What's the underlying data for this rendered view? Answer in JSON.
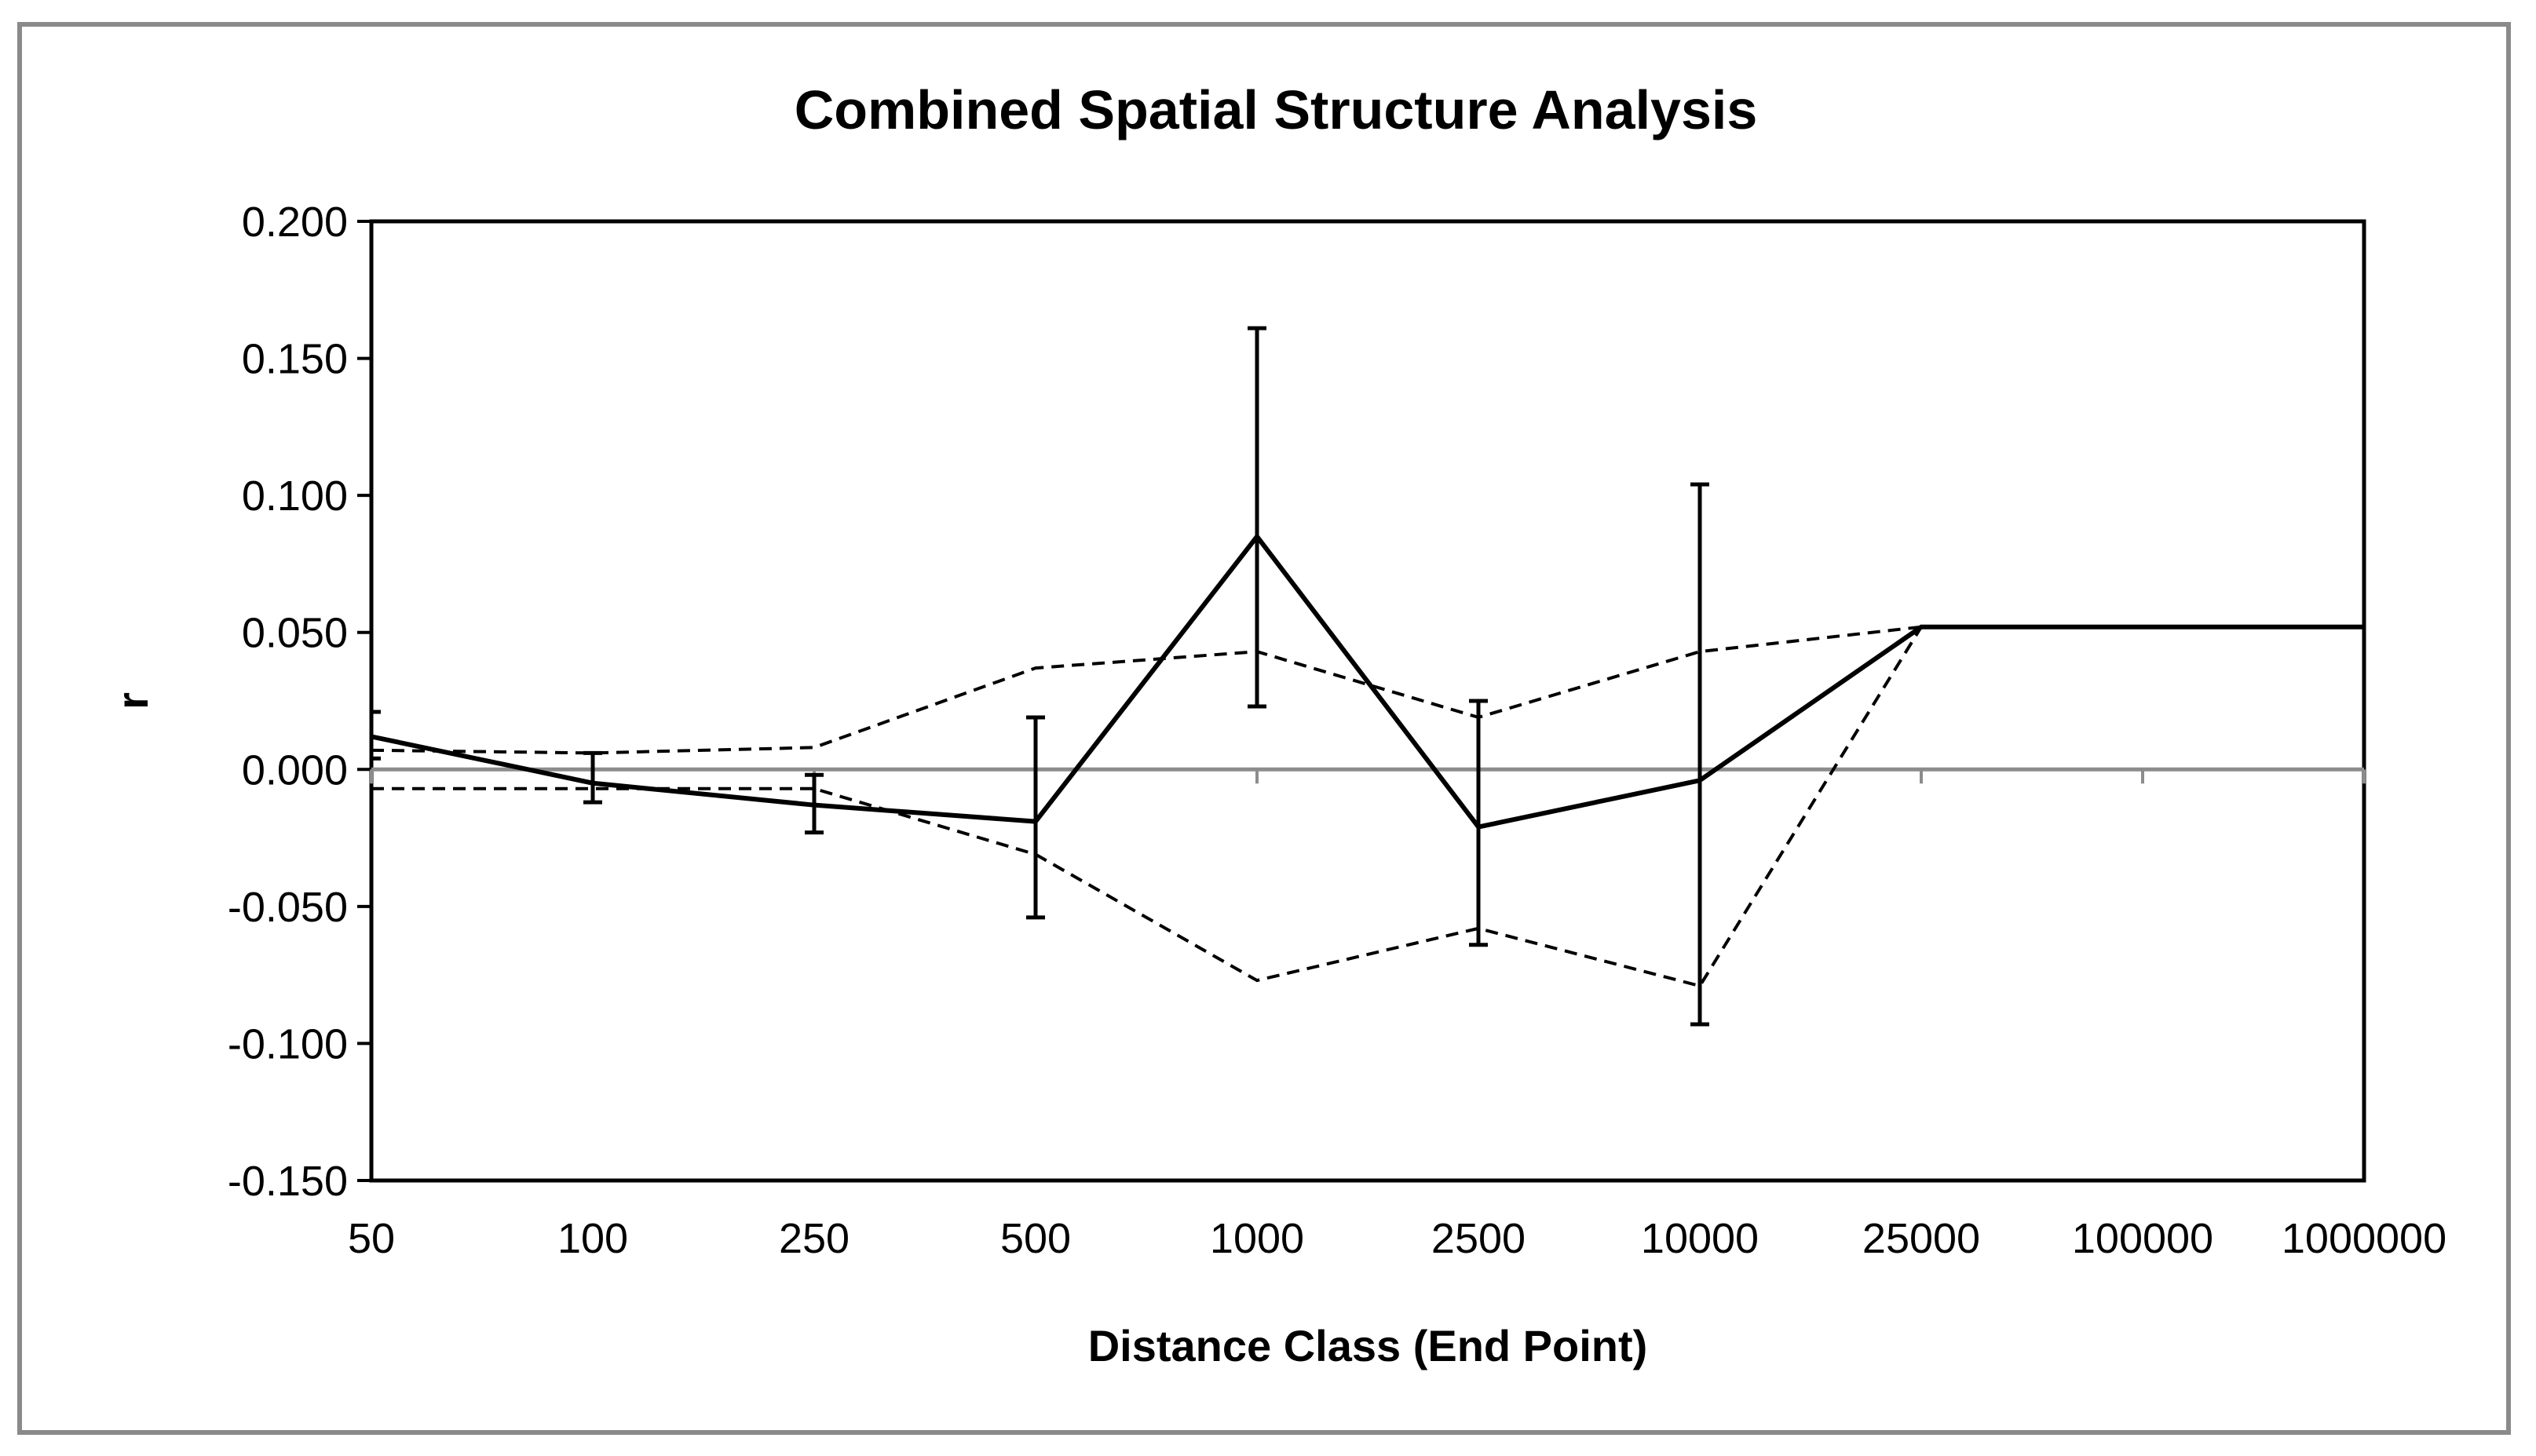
{
  "chart_data": {
    "type": "line",
    "title": "Combined Spatial Structure Analysis",
    "xlabel": "Distance Class (End Point)",
    "ylabel": "r",
    "categories": [
      "50",
      "100",
      "250",
      "500",
      "1000",
      "2500",
      "10000",
      "25000",
      "100000",
      "1000000"
    ],
    "ylim": [
      -0.15,
      0.2
    ],
    "yticks": [
      "0.200",
      "0.150",
      "0.100",
      "0.050",
      "0.000",
      "-0.050",
      "-0.100",
      "-0.150"
    ],
    "ytick_values": [
      0.2,
      0.15,
      0.1,
      0.05,
      0.0,
      -0.05,
      -0.1,
      -0.15
    ],
    "grid": false,
    "zero_line": true,
    "series": [
      {
        "style": "solid",
        "values": [
          0.012,
          -0.005,
          -0.013,
          -0.019,
          0.085,
          -0.021,
          -0.004,
          0.052,
          0.052,
          0.052
        ],
        "error_bars": [
          [
            0.004,
            0.021
          ],
          [
            -0.012,
            0.006
          ],
          [
            -0.023,
            -0.002
          ],
          [
            -0.054,
            0.019
          ],
          [
            0.023,
            0.161
          ],
          [
            -0.064,
            0.025
          ],
          [
            -0.093,
            0.104
          ],
          null,
          null,
          null
        ]
      },
      {
        "style": "dashed",
        "values": [
          0.007,
          0.006,
          0.008,
          0.037,
          0.043,
          0.019,
          0.043,
          0.052,
          0.052,
          0.052
        ]
      },
      {
        "style": "dashed",
        "values": [
          -0.007,
          -0.007,
          -0.007,
          -0.031,
          -0.077,
          -0.058,
          -0.079,
          0.052,
          0.052,
          0.052
        ]
      }
    ],
    "colors": {
      "series": "#000000",
      "zero_line": "#8c8c8c",
      "plot_border": "#000000",
      "frame_border": "#8a8a8a"
    }
  }
}
